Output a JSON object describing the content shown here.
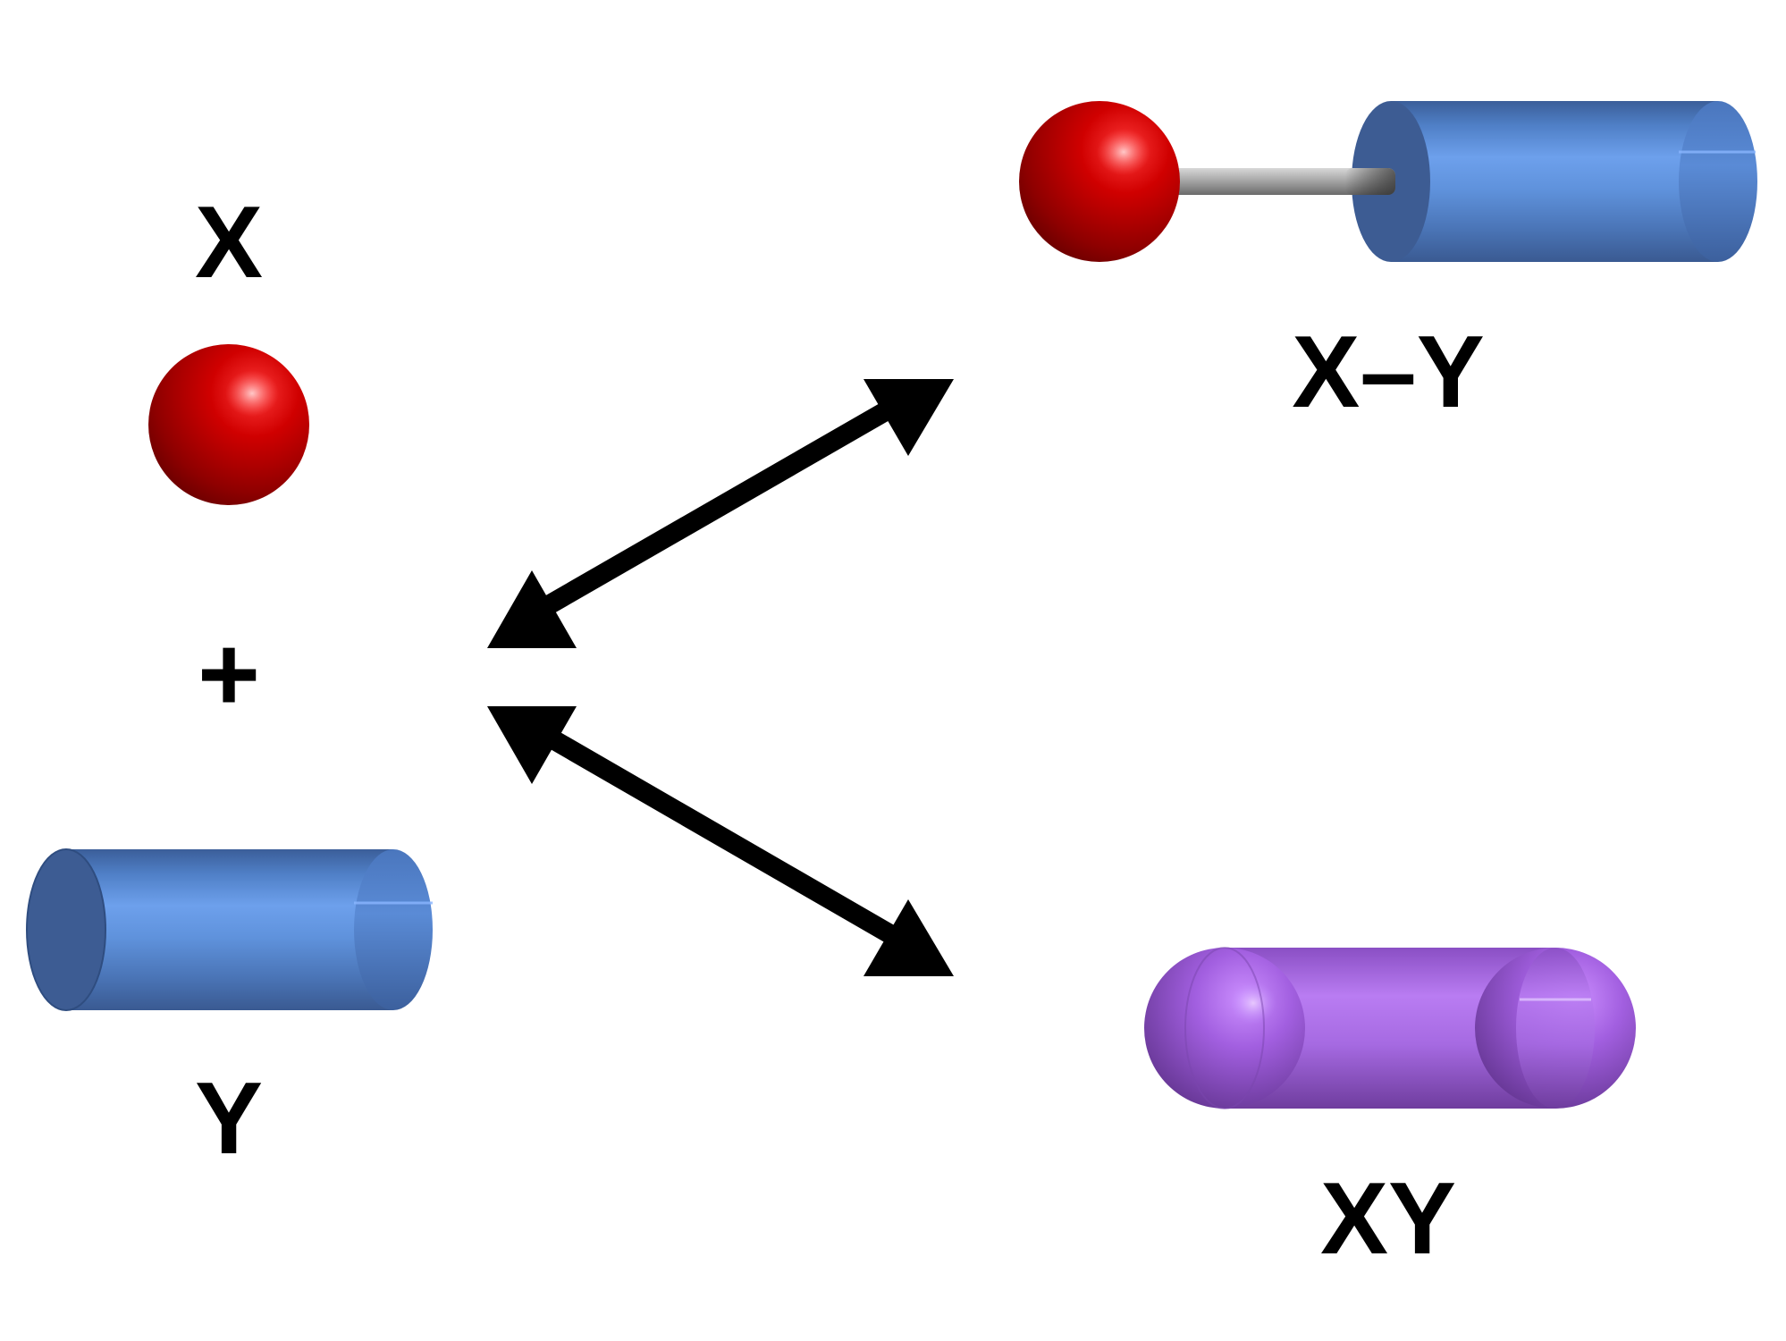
{
  "labels": {
    "x": "X",
    "plus": "+",
    "y": "Y",
    "x_bond_y": "X–Y",
    "xy": "XY"
  },
  "colors": {
    "sphere_red": "#c40000",
    "cylinder_blue": "#5b8fd8",
    "capsule_purple": "#a56ae0",
    "bond_gray": "#9a9a9a",
    "arrow": "#000000"
  }
}
